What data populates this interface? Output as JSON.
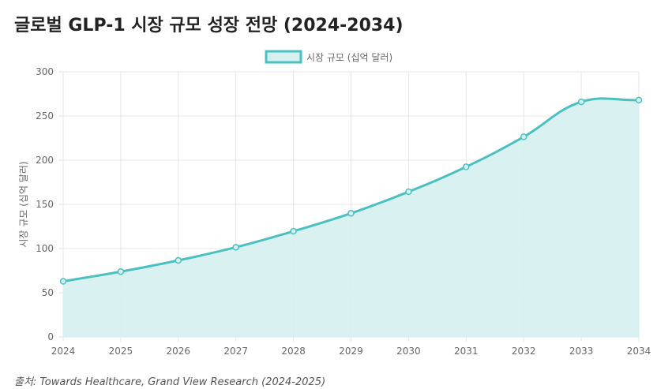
{
  "title": "글로벌 GLP-1 시장 규모 성장 전망 (2024-2034)",
  "source": "출처: Towards Healthcare, Grand View Research (2024-2025)",
  "colors": {
    "line": "#4bc0c0",
    "fill": "#d6f0f0",
    "grid": "#e5e5e5"
  },
  "chart_data": {
    "type": "area",
    "title": "글로벌 GLP-1 시장 규모 성장 전망 (2024-2034)",
    "xlabel": "",
    "ylabel": "시장 규모 (십억 달러)",
    "legend": {
      "label": "시장 규모 (십억 달러)",
      "position": "top-center"
    },
    "categories": [
      "2024",
      "2025",
      "2026",
      "2027",
      "2028",
      "2029",
      "2030",
      "2031",
      "2032",
      "2033",
      "2034"
    ],
    "series": [
      {
        "name": "시장 규모 (십억 달러)",
        "values": [
          62.9,
          73.9,
          86.6,
          101.5,
          119.6,
          139.9,
          164.3,
          192.5,
          226.4,
          266.0,
          268.0
        ]
      }
    ],
    "ylim": [
      0,
      300
    ],
    "yticks": [
      0,
      50,
      100,
      150,
      200,
      250,
      300
    ],
    "grid": true
  }
}
